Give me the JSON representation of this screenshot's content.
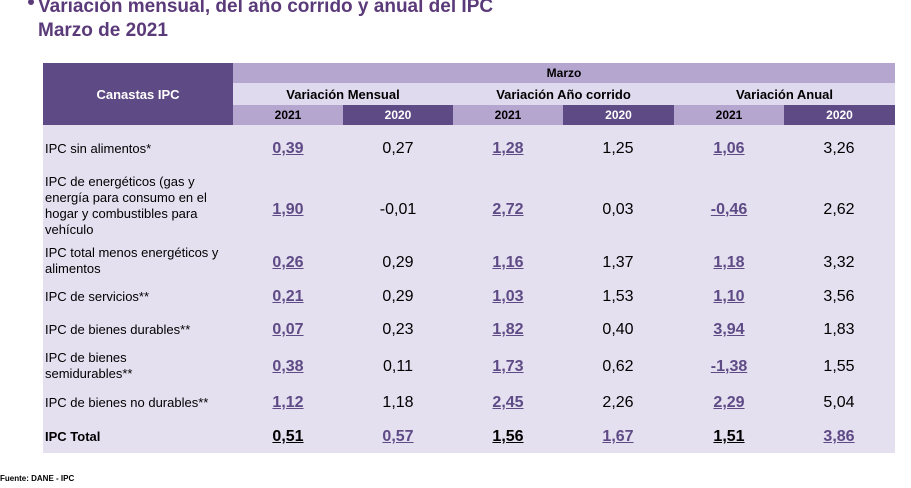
{
  "title": {
    "line1": "Variación mensual, del año corrido y anual del IPC",
    "line2": "Marzo de 2021"
  },
  "table": {
    "corner_label": "Canastas IPC",
    "month_label": "Marzo",
    "groups": [
      "Variación Mensual",
      "Variación Año corrido",
      "Variación Anual"
    ],
    "years": [
      "2021",
      "2020",
      "2021",
      "2020",
      "2021",
      "2020"
    ],
    "rows": [
      {
        "label": "IPC sin alimentos*",
        "values": [
          "0,39",
          "0,27",
          "1,28",
          "1,25",
          "1,06",
          "3,26"
        ]
      },
      {
        "label": "IPC de energéticos (gas y energía para consumo en el hogar y combustibles para vehículo",
        "values": [
          "1,90",
          "-0,01",
          "2,72",
          "0,03",
          "-0,46",
          "2,62"
        ]
      },
      {
        "label": "IPC total menos energéticos y alimentos",
        "values": [
          "0,26",
          "0,29",
          "1,16",
          "1,37",
          "1,18",
          "3,32"
        ]
      },
      {
        "label": "IPC de servicios**",
        "values": [
          "0,21",
          "0,29",
          "1,03",
          "1,53",
          "1,10",
          "3,56"
        ]
      },
      {
        "label": "IPC de bienes durables**",
        "values": [
          "0,07",
          "0,23",
          "1,82",
          "0,40",
          "3,94",
          "1,83"
        ]
      },
      {
        "label": "IPC de bienes semidurables**",
        "values": [
          "0,38",
          "0,11",
          "1,73",
          "0,62",
          "-1,38",
          "1,55"
        ]
      },
      {
        "label": "IPC de bienes no durables**",
        "values": [
          "1,12",
          "1,18",
          "2,45",
          "2,26",
          "2,29",
          "5,04"
        ]
      },
      {
        "label": "IPC Total",
        "values": [
          "0,51",
          "0,57",
          "1,56",
          "1,67",
          "1,51",
          "3,86"
        ]
      }
    ]
  },
  "footer": "Fuente: DANE - IPC",
  "colors": {
    "header_dark": "#5e4a85",
    "header_light": "#b5a6d0",
    "body": "#e4e0f0",
    "title": "#5b3a7a"
  }
}
